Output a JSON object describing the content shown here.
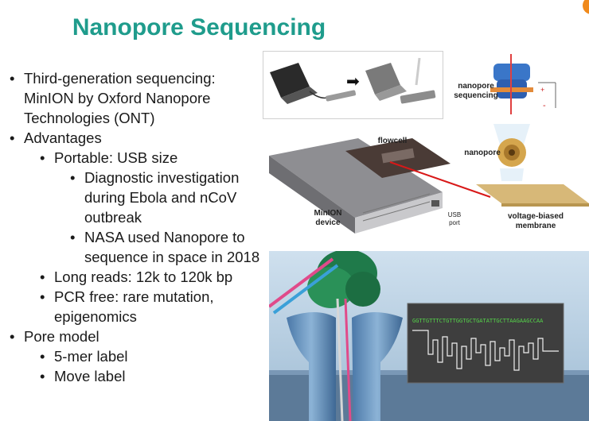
{
  "slide": {
    "title": "Nanopore Sequencing",
    "bullets": [
      {
        "level": 1,
        "text": "Third-generation sequencing: MinION by Oxford Nanopore Technologies (ONT)"
      },
      {
        "level": 1,
        "text": "Advantages"
      },
      {
        "level": 2,
        "text": "Portable: USB size"
      },
      {
        "level": 3,
        "text": "Diagnostic investigation during Ebola and nCoV outbreak"
      },
      {
        "level": 3,
        "text": "NASA used Nanopore to sequence in space in 2018"
      },
      {
        "level": 2,
        "text": "Long reads: 12k to 120k bp"
      },
      {
        "level": 2,
        "text": "PCR free: rare mutation, epigenomics"
      },
      {
        "level": 1,
        "text": "Pore model"
      },
      {
        "level": 2,
        "text": "5-mer label"
      },
      {
        "level": 2,
        "text": "Move label"
      }
    ]
  },
  "figure": {
    "label_flowcell": "flowcell",
    "label_minion_line1": "MinION",
    "label_minion_line2": "device",
    "label_usb_line1": "USB",
    "label_usb_line2": "port",
    "label_nanopore_seq_line1": "nanopore",
    "label_nanopore_seq_line2": "sequencing",
    "label_nanopore": "nanopore",
    "label_membrane_line1": "voltage-biased",
    "label_membrane_line2": "membrane",
    "sequence_text": "GGTTGTTTCTGTTGGTGCTGATATTGCTTAAGAAGCCAA",
    "plus_sign": "+",
    "minus_sign": "-",
    "arrow_glyph": "➡"
  },
  "colors": {
    "title": "#1f9c8c",
    "accent_orange": "#f08a1c",
    "sequence_green": "#55d34a",
    "pointer_red": "#d81818"
  }
}
